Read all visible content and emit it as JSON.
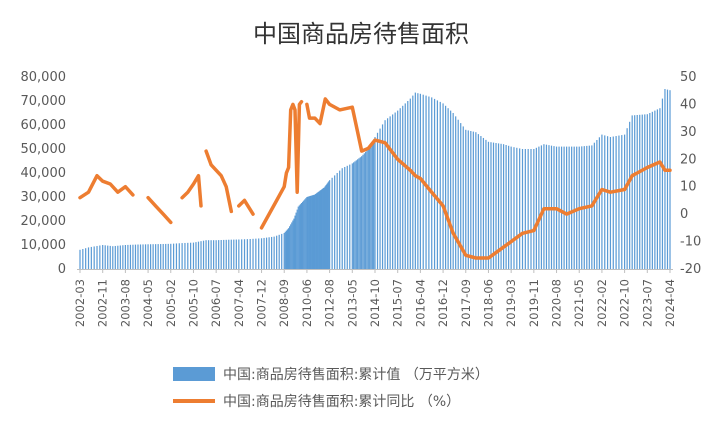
{
  "chart_data": {
    "type": "bar+line",
    "title": "中国商品房待售面积",
    "x_ticks": [
      "2002-03",
      "2002-11",
      "2003-08",
      "2004-05",
      "2005-02",
      "2005-10",
      "2006-07",
      "2007-04",
      "2007-12",
      "2008-09",
      "2010-06",
      "2012-08",
      "2013-05",
      "2014-10",
      "2015-07",
      "2016-04",
      "2016-12",
      "2017-09",
      "2018-06",
      "2019-03",
      "2019-11",
      "2020-08",
      "2021-05",
      "2022-02",
      "2022-10",
      "2023-07",
      "2024-04"
    ],
    "y_left": {
      "min": 0,
      "max": 80000,
      "step": 10000,
      "tick_labels": [
        "0",
        "10,000",
        "20,000",
        "30,000",
        "40,000",
        "50,000",
        "60,000",
        "70,000",
        "80,000"
      ]
    },
    "y_right": {
      "min": -20,
      "max": 50,
      "step": 10,
      "tick_labels": [
        "-20",
        "-10",
        "0",
        "10",
        "20",
        "30",
        "40",
        "50"
      ]
    },
    "grid": false,
    "legend_position": "bottom",
    "series": [
      {
        "name": "中国:商品房待售面积:累计值 （万平方米）",
        "type": "bar",
        "color": "#5B9BD5",
        "points": [
          [
            "2002-03",
            8000
          ],
          [
            "2002-06",
            9000
          ],
          [
            "2002-11",
            10000
          ],
          [
            "2003-03",
            9500
          ],
          [
            "2003-08",
            10000
          ],
          [
            "2004-01",
            10200
          ],
          [
            "2004-05",
            10300
          ],
          [
            "2004-10",
            10400
          ],
          [
            "2005-02",
            10500
          ],
          [
            "2005-06",
            10800
          ],
          [
            "2005-10",
            11000
          ],
          [
            "2006-03",
            12000
          ],
          [
            "2006-07",
            12000
          ],
          [
            "2006-12",
            12200
          ],
          [
            "2007-04",
            12300
          ],
          [
            "2007-08",
            12500
          ],
          [
            "2007-12",
            12800
          ],
          [
            "2008-05",
            13500
          ],
          [
            "2008-09",
            15000
          ],
          [
            "2009-01",
            17000
          ],
          [
            "2009-06",
            21000
          ],
          [
            "2009-10",
            26000
          ],
          [
            "2010-02",
            28000
          ],
          [
            "2010-06",
            30000
          ],
          [
            "2011-03",
            31000
          ],
          [
            "2012-02",
            34000
          ],
          [
            "2012-08",
            37000
          ],
          [
            "2013-01",
            42000
          ],
          [
            "2013-05",
            44000
          ],
          [
            "2013-12",
            47000
          ],
          [
            "2014-05",
            50000
          ],
          [
            "2014-10",
            55000
          ],
          [
            "2015-02",
            62000
          ],
          [
            "2015-07",
            66000
          ],
          [
            "2015-12",
            71000
          ],
          [
            "2016-02",
            73500
          ],
          [
            "2016-04",
            73000
          ],
          [
            "2016-08",
            71500
          ],
          [
            "2016-12",
            69000
          ],
          [
            "2017-04",
            65000
          ],
          [
            "2017-09",
            58000
          ],
          [
            "2018-01",
            57000
          ],
          [
            "2018-06",
            53000
          ],
          [
            "2018-12",
            52000
          ],
          [
            "2019-03",
            51000
          ],
          [
            "2019-07",
            50000
          ],
          [
            "2019-11",
            50000
          ],
          [
            "2020-03",
            52000
          ],
          [
            "2020-08",
            51000
          ],
          [
            "2020-12",
            51000
          ],
          [
            "2021-05",
            51000
          ],
          [
            "2021-10",
            51500
          ],
          [
            "2022-02",
            56000
          ],
          [
            "2022-05",
            55000
          ],
          [
            "2022-10",
            56000
          ],
          [
            "2023-01",
            64000
          ],
          [
            "2023-07",
            64500
          ],
          [
            "2023-12",
            67000
          ],
          [
            "2024-02",
            75000
          ],
          [
            "2024-04",
            74500
          ]
        ]
      },
      {
        "name": "中国:商品房待售面积:累计同比 （%）",
        "type": "line",
        "color": "#ED7D31",
        "points": [
          [
            "2002-03",
            6
          ],
          [
            "2002-06",
            8
          ],
          [
            "2002-09",
            14
          ],
          [
            "2002-11",
            12
          ],
          [
            "2003-02",
            11
          ],
          [
            "2003-05",
            8
          ],
          [
            "2003-08",
            10
          ],
          [
            "2003-11",
            7
          ],
          null,
          [
            "2004-05",
            6
          ],
          [
            "2004-08",
            3
          ],
          [
            "2004-11",
            0
          ],
          [
            "2005-02",
            -3
          ],
          null,
          [
            "2005-06",
            6
          ],
          [
            "2005-08",
            8
          ],
          [
            "2005-10",
            11
          ],
          [
            "2005-12",
            14
          ],
          [
            "2006-01",
            3
          ],
          null,
          [
            "2006-03",
            23
          ],
          [
            "2006-05",
            18
          ],
          [
            "2006-07",
            16
          ],
          [
            "2006-09",
            14
          ],
          [
            "2006-11",
            10
          ],
          [
            "2007-01",
            1
          ],
          null,
          [
            "2007-04",
            3
          ],
          [
            "2007-06",
            5
          ],
          [
            "2007-09",
            0
          ],
          null,
          [
            "2007-12",
            -5
          ],
          [
            "2008-03",
            0
          ],
          [
            "2008-06",
            5
          ],
          [
            "2008-09",
            10
          ],
          [
            "2008-11",
            15
          ],
          [
            "2009-01",
            17
          ],
          [
            "2009-03",
            38
          ],
          [
            "2009-05",
            40
          ],
          [
            "2009-07",
            38
          ],
          [
            "2009-09",
            8
          ],
          [
            "2009-11",
            40
          ],
          [
            "2010-01",
            41
          ],
          null,
          [
            "2010-06",
            40
          ],
          [
            "2010-09",
            35
          ],
          [
            "2011-03",
            35
          ],
          [
            "2011-09",
            33
          ],
          [
            "2012-03",
            42
          ],
          [
            "2012-08",
            40
          ],
          [
            "2012-12",
            38
          ],
          [
            "2013-05",
            39
          ],
          [
            "2013-12",
            23
          ],
          [
            "2014-05",
            24
          ],
          [
            "2014-10",
            27
          ],
          [
            "2015-02",
            26
          ],
          [
            "2015-07",
            20
          ],
          [
            "2015-12",
            16
          ],
          [
            "2016-02",
            14
          ],
          [
            "2016-04",
            13
          ],
          [
            "2016-08",
            8
          ],
          [
            "2016-12",
            3
          ],
          [
            "2017-04",
            -7
          ],
          [
            "2017-09",
            -15
          ],
          [
            "2018-01",
            -16
          ],
          [
            "2018-06",
            -16
          ],
          [
            "2018-12",
            -12
          ],
          [
            "2019-03",
            -10
          ],
          [
            "2019-07",
            -7
          ],
          [
            "2019-11",
            -6
          ],
          [
            "2020-03",
            2
          ],
          [
            "2020-08",
            2
          ],
          [
            "2020-12",
            0
          ],
          [
            "2021-05",
            2
          ],
          [
            "2021-10",
            3
          ],
          [
            "2022-02",
            9
          ],
          [
            "2022-05",
            8
          ],
          [
            "2022-10",
            9
          ],
          [
            "2023-01",
            14
          ],
          [
            "2023-07",
            17
          ],
          [
            "2023-12",
            19
          ],
          [
            "2024-02",
            16
          ],
          [
            "2024-04",
            16
          ]
        ]
      }
    ]
  }
}
